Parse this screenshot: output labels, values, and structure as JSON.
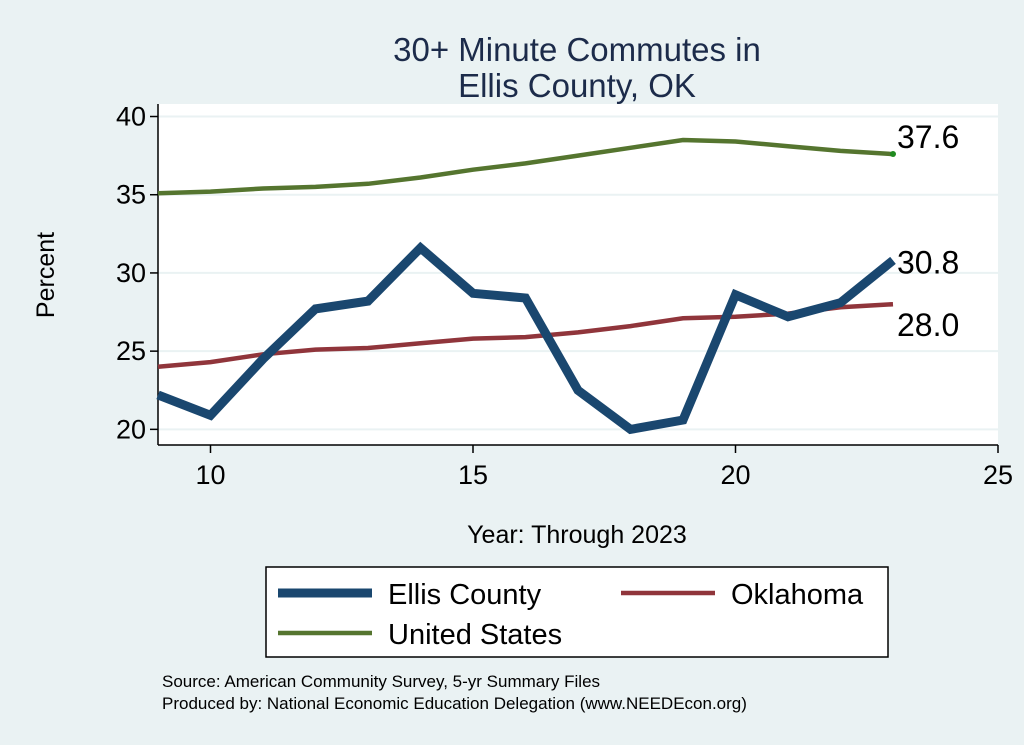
{
  "chart_data": {
    "type": "line",
    "title": [
      "30+ Minute Commutes in",
      "Ellis County, OK"
    ],
    "xlabel": "Year: Through 2023",
    "ylabel": "Percent",
    "xlim": [
      9,
      25
    ],
    "ylim": [
      19,
      40.8
    ],
    "xticks": [
      10,
      15,
      20,
      25
    ],
    "yticks": [
      20,
      25,
      30,
      35,
      40
    ],
    "x": [
      9,
      10,
      11,
      12,
      13,
      14,
      15,
      16,
      17,
      18,
      19,
      20,
      21,
      22,
      23
    ],
    "series": [
      {
        "name": "Ellis County",
        "color": "#1a476f",
        "values": [
          22.2,
          20.9,
          24.5,
          27.7,
          28.2,
          31.6,
          28.7,
          28.4,
          22.5,
          20.0,
          20.6,
          28.6,
          27.2,
          28.1,
          30.8
        ],
        "end_label": "30.8"
      },
      {
        "name": "Oklahoma",
        "color": "#90353b",
        "values": [
          24.0,
          24.3,
          24.8,
          25.1,
          25.2,
          25.5,
          25.8,
          25.9,
          26.2,
          26.6,
          27.1,
          27.2,
          27.4,
          27.8,
          28.0
        ],
        "end_label": "28.0"
      },
      {
        "name": "United States",
        "color": "#55752f",
        "values": [
          35.1,
          35.2,
          35.4,
          35.5,
          35.7,
          36.1,
          36.6,
          37.0,
          37.5,
          38.0,
          38.5,
          38.4,
          38.1,
          37.8,
          37.6
        ],
        "end_label": "37.6"
      }
    ],
    "legend": [
      "Ellis County",
      "Oklahoma",
      "United States"
    ],
    "grid": true,
    "source": [
      "Source: American Community Survey, 5-yr Summary Files",
      "Produced by: National Economic Education Delegation (www.NEEDEcon.org)"
    ]
  }
}
